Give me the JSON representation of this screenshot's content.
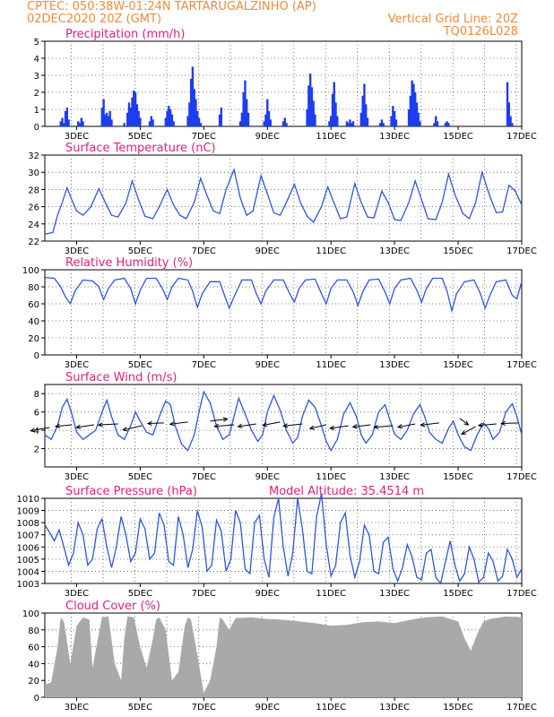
{
  "header": {
    "left_line1": "CPTEC:   050:38W-01:24N   TARTARUGALZINHO (AP)",
    "left_line2": "02DEC2020 20Z (GMT)",
    "right_line1": "Vertical Grid Line: 20Z",
    "right_line2": "TQ0126L028"
  },
  "colors": {
    "header": "#f08a3c",
    "title": "#e0217a",
    "line": "#2f55e0",
    "bar": "#1e3cf0",
    "cloud": "#a9a9a9",
    "grid": "#555555"
  },
  "x_axis": {
    "start_day": 2.0,
    "end_day": 17.0,
    "ticks": [
      3,
      5,
      7,
      9,
      11,
      13,
      15,
      17
    ],
    "tick_labels": [
      "3DEC",
      "5DEC",
      "7DEC",
      "9DEC",
      "11DEC",
      "13DEC",
      "15DEC",
      "17DEC"
    ],
    "vertical_grid_days": [
      2.833,
      3.833,
      4.833,
      5.833,
      6.833,
      7.833,
      8.833,
      9.833,
      10.833,
      11.833,
      12.833,
      13.833,
      14.833,
      15.833,
      16.833
    ]
  },
  "chart_data": [
    {
      "type": "bar",
      "title": "Precipitation (mm/h)",
      "ylim": [
        0,
        5
      ],
      "yticks": [
        0,
        1,
        2,
        3,
        4,
        5
      ],
      "x": [
        2.5,
        2.55,
        2.6,
        2.65,
        2.7,
        2.75,
        3.05,
        3.1,
        3.15,
        3.2,
        3.8,
        3.85,
        3.9,
        3.95,
        4.0,
        4.05,
        4.1,
        4.5,
        4.6,
        4.65,
        4.7,
        4.75,
        4.8,
        4.85,
        4.9,
        4.95,
        5.0,
        5.3,
        5.35,
        5.4,
        5.8,
        5.85,
        5.9,
        5.95,
        6.0,
        6.05,
        6.5,
        6.55,
        6.6,
        6.65,
        6.7,
        6.75,
        6.8,
        6.85,
        6.9,
        7.5,
        7.55,
        8.15,
        8.2,
        8.25,
        8.3,
        8.35,
        8.4,
        8.9,
        8.95,
        9.0,
        9.05,
        9.1,
        9.5,
        9.55,
        9.6,
        10.25,
        10.3,
        10.35,
        10.4,
        10.45,
        10.5,
        10.95,
        11.0,
        11.05,
        11.1,
        11.15,
        11.2,
        11.5,
        11.55,
        11.6,
        11.65,
        11.7,
        11.95,
        12.0,
        12.05,
        12.1,
        12.15,
        12.55,
        12.6,
        12.65,
        12.9,
        12.95,
        13.0,
        13.05,
        13.45,
        13.5,
        13.55,
        13.6,
        13.65,
        13.7,
        13.75,
        13.8,
        14.25,
        14.3,
        14.35,
        14.6,
        14.65,
        14.7,
        16.55,
        16.6,
        16.65,
        16.7
      ],
      "values": [
        0.3,
        0.5,
        0.2,
        0.9,
        1.1,
        0.4,
        0.3,
        0.2,
        0.5,
        0.3,
        1.1,
        1.6,
        0.7,
        0.8,
        0.6,
        0.9,
        0.4,
        0.2,
        0.8,
        1.4,
        1.1,
        1.7,
        2.1,
        2.0,
        1.3,
        0.9,
        0.5,
        0.3,
        0.6,
        0.4,
        0.5,
        0.9,
        1.2,
        1.0,
        0.7,
        0.3,
        0.6,
        1.4,
        2.8,
        3.5,
        2.2,
        1.6,
        0.9,
        0.5,
        0.2,
        0.7,
        1.1,
        0.3,
        0.8,
        2.0,
        2.7,
        1.6,
        0.8,
        0.3,
        0.7,
        1.6,
        0.9,
        0.4,
        0.3,
        0.5,
        0.2,
        1.0,
        2.4,
        3.1,
        2.3,
        1.5,
        0.7,
        0.3,
        0.6,
        1.9,
        2.6,
        1.4,
        0.6,
        0.3,
        0.2,
        0.4,
        0.2,
        0.3,
        0.8,
        1.8,
        2.5,
        1.3,
        0.5,
        0.2,
        0.4,
        0.2,
        0.6,
        1.2,
        0.9,
        0.4,
        1.0,
        1.8,
        2.7,
        2.5,
        2.0,
        1.4,
        0.8,
        0.3,
        0.2,
        0.6,
        0.3,
        0.2,
        0.3,
        0.2,
        2.6,
        1.4,
        0.6,
        0.2
      ]
    },
    {
      "type": "line",
      "title": "Surface Temperature (nC)",
      "ylim": [
        22,
        32
      ],
      "yticks": [
        22,
        24,
        26,
        28,
        30,
        32
      ],
      "x": [
        2.0,
        2.25,
        2.4,
        2.55,
        2.7,
        2.85,
        3.0,
        3.2,
        3.45,
        3.7,
        3.9,
        4.1,
        4.3,
        4.55,
        4.75,
        4.95,
        5.15,
        5.4,
        5.6,
        5.85,
        6.05,
        6.25,
        6.45,
        6.7,
        6.9,
        7.1,
        7.3,
        7.5,
        7.7,
        7.95,
        8.15,
        8.35,
        8.55,
        8.8,
        9.0,
        9.2,
        9.4,
        9.6,
        9.85,
        10.05,
        10.25,
        10.45,
        10.7,
        10.9,
        11.1,
        11.3,
        11.5,
        11.75,
        11.95,
        12.15,
        12.35,
        12.6,
        12.8,
        13.0,
        13.2,
        13.45,
        13.65,
        13.85,
        14.05,
        14.3,
        14.5,
        14.7,
        14.9,
        15.15,
        15.35,
        15.55,
        15.75,
        16.0,
        16.2,
        16.4,
        16.6,
        16.8,
        17.0
      ],
      "values": [
        22.8,
        23.0,
        25.0,
        26.5,
        28.2,
        26.8,
        25.5,
        25.0,
        26.0,
        28.1,
        26.5,
        25.0,
        24.8,
        26.4,
        29.0,
        26.8,
        24.9,
        24.6,
        26.0,
        28.0,
        26.2,
        25.0,
        24.6,
        26.5,
        29.3,
        27.3,
        25.5,
        25.2,
        28.0,
        30.3,
        27.0,
        25.0,
        25.5,
        29.6,
        27.5,
        25.3,
        25.0,
        26.5,
        28.6,
        26.4,
        24.9,
        24.2,
        26.0,
        28.3,
        26.4,
        24.6,
        24.8,
        28.7,
        26.5,
        24.8,
        24.7,
        27.8,
        26.5,
        24.5,
        24.4,
        26.5,
        29.0,
        26.8,
        24.6,
        24.5,
        26.5,
        29.8,
        27.4,
        25.2,
        24.6,
        26.5,
        30.0,
        27.2,
        25.3,
        25.4,
        28.5,
        27.8,
        26.2
      ]
    },
    {
      "type": "line",
      "title": "Relative Humidity (%)",
      "ylim": [
        0,
        100
      ],
      "yticks": [
        0,
        20,
        40,
        60,
        80,
        100
      ],
      "x": [
        2.0,
        2.3,
        2.5,
        2.65,
        2.8,
        2.95,
        3.2,
        3.5,
        3.7,
        3.85,
        4.0,
        4.2,
        4.5,
        4.7,
        4.85,
        5.0,
        5.2,
        5.5,
        5.7,
        5.85,
        6.0,
        6.2,
        6.5,
        6.65,
        6.8,
        6.95,
        7.2,
        7.5,
        7.65,
        7.8,
        7.95,
        8.2,
        8.5,
        8.65,
        8.8,
        8.95,
        9.2,
        9.5,
        9.7,
        9.85,
        10.0,
        10.2,
        10.5,
        10.7,
        10.85,
        11.0,
        11.2,
        11.5,
        11.7,
        11.85,
        12.0,
        12.2,
        12.5,
        12.7,
        12.85,
        13.0,
        13.2,
        13.5,
        13.7,
        13.85,
        14.0,
        14.2,
        14.5,
        14.65,
        14.8,
        14.95,
        15.2,
        15.5,
        15.7,
        15.85,
        16.0,
        16.2,
        16.5,
        16.7,
        16.85,
        17.0
      ],
      "values": [
        91,
        90,
        80,
        68,
        60,
        75,
        88,
        87,
        80,
        65,
        78,
        88,
        90,
        78,
        60,
        76,
        90,
        90,
        78,
        65,
        80,
        90,
        88,
        75,
        56,
        72,
        86,
        86,
        70,
        55,
        68,
        88,
        88,
        72,
        60,
        75,
        88,
        88,
        72,
        62,
        78,
        88,
        89,
        72,
        60,
        78,
        88,
        88,
        74,
        58,
        74,
        88,
        89,
        74,
        60,
        78,
        88,
        90,
        76,
        62,
        78,
        90,
        90,
        75,
        52,
        72,
        86,
        88,
        72,
        55,
        70,
        86,
        88,
        70,
        66,
        86
      ]
    },
    {
      "type": "line",
      "title": "Surface Wind (m/s)",
      "ylim": [
        0,
        9
      ],
      "yticks": [
        2,
        4,
        6,
        8
      ],
      "x": [
        2.0,
        2.2,
        2.4,
        2.55,
        2.7,
        2.85,
        3.0,
        3.2,
        3.4,
        3.6,
        3.8,
        3.95,
        4.1,
        4.3,
        4.5,
        4.7,
        4.85,
        5.0,
        5.2,
        5.4,
        5.6,
        5.8,
        5.95,
        6.1,
        6.3,
        6.5,
        6.7,
        6.85,
        7.0,
        7.2,
        7.4,
        7.6,
        7.8,
        7.95,
        8.1,
        8.3,
        8.5,
        8.7,
        8.85,
        9.0,
        9.2,
        9.4,
        9.6,
        9.8,
        9.95,
        10.1,
        10.3,
        10.5,
        10.7,
        10.85,
        11.0,
        11.2,
        11.4,
        11.6,
        11.8,
        11.95,
        12.1,
        12.3,
        12.5,
        12.7,
        12.85,
        13.0,
        13.2,
        13.4,
        13.6,
        13.8,
        13.95,
        14.1,
        14.3,
        14.5,
        14.7,
        14.85,
        15.0,
        15.2,
        15.4,
        15.6,
        15.8,
        15.95,
        16.1,
        16.3,
        16.5,
        16.7,
        16.85,
        17.0
      ],
      "values": [
        3.5,
        3.0,
        4.5,
        6.5,
        7.4,
        5.8,
        3.8,
        3.0,
        3.5,
        4.0,
        6.0,
        7.3,
        5.5,
        3.5,
        3.0,
        4.5,
        6.0,
        5.0,
        3.8,
        3.5,
        5.5,
        7.2,
        6.8,
        4.5,
        2.5,
        1.8,
        3.5,
        6.0,
        8.2,
        7.0,
        4.5,
        3.0,
        3.5,
        5.5,
        7.5,
        5.8,
        4.0,
        2.8,
        3.5,
        6.0,
        7.8,
        6.2,
        4.0,
        2.6,
        3.2,
        5.5,
        7.3,
        6.5,
        4.5,
        2.8,
        1.8,
        3.0,
        5.8,
        7.0,
        5.5,
        3.5,
        2.6,
        3.5,
        6.0,
        6.8,
        5.2,
        3.6,
        3.0,
        4.0,
        5.8,
        6.8,
        5.5,
        3.8,
        3.0,
        2.6,
        4.2,
        5.0,
        3.5,
        2.2,
        1.8,
        3.5,
        4.8,
        4.2,
        3.0,
        3.8,
        6.0,
        6.9,
        5.5,
        3.5
      ],
      "vectors": [
        {
          "x": 2.15,
          "y": 4.3,
          "u": -3.5,
          "v": -0.6
        },
        {
          "x": 2.85,
          "y": 4.6,
          "u": -3.0,
          "v": -0.3
        },
        {
          "x": 3.55,
          "y": 4.6,
          "u": -3.3,
          "v": -0.5
        },
        {
          "x": 4.3,
          "y": 4.7,
          "u": -3.6,
          "v": -0.2
        },
        {
          "x": 5.05,
          "y": 4.5,
          "u": -3.5,
          "v": -0.8
        },
        {
          "x": 5.75,
          "y": 4.8,
          "u": -3.0,
          "v": -0.1
        },
        {
          "x": 6.5,
          "y": 4.9,
          "u": -3.3,
          "v": -0.4
        },
        {
          "x": 7.2,
          "y": 5.0,
          "u": 3.2,
          "v": 0.4
        },
        {
          "x": 7.95,
          "y": 4.6,
          "u": -3.6,
          "v": -0.3
        },
        {
          "x": 8.65,
          "y": 4.7,
          "u": -3.4,
          "v": -0.5
        },
        {
          "x": 9.4,
          "y": 4.9,
          "u": -3.2,
          "v": -0.6
        },
        {
          "x": 10.1,
          "y": 4.7,
          "u": -3.5,
          "v": -0.4
        },
        {
          "x": 10.85,
          "y": 4.6,
          "u": -3.0,
          "v": -0.7
        },
        {
          "x": 11.55,
          "y": 4.5,
          "u": -3.4,
          "v": -0.5
        },
        {
          "x": 12.25,
          "y": 4.6,
          "u": -3.3,
          "v": -0.4
        },
        {
          "x": 12.95,
          "y": 4.5,
          "u": -3.5,
          "v": -0.3
        },
        {
          "x": 13.65,
          "y": 4.7,
          "u": -3.2,
          "v": -0.6
        },
        {
          "x": 14.4,
          "y": 4.8,
          "u": -3.4,
          "v": -0.4
        },
        {
          "x": 15.05,
          "y": 5.3,
          "u": 1.6,
          "v": -1.2
        },
        {
          "x": 15.55,
          "y": 4.4,
          "u": -2.6,
          "v": -1.4
        },
        {
          "x": 16.2,
          "y": 4.7,
          "u": -3.3,
          "v": -0.3
        },
        {
          "x": 16.9,
          "y": 4.8,
          "u": -3.2,
          "v": -0.1
        }
      ]
    },
    {
      "type": "line",
      "title": "Surface Pressure (hPa)",
      "annotation": "Model Altitude: 35.4514 m",
      "ylim": [
        1003,
        1010
      ],
      "yticks": [
        1003,
        1004,
        1005,
        1006,
        1007,
        1008,
        1009,
        1010
      ],
      "x": [
        2.0,
        2.15,
        2.3,
        2.45,
        2.6,
        2.75,
        2.9,
        3.05,
        3.2,
        3.35,
        3.5,
        3.65,
        3.8,
        3.95,
        4.1,
        4.25,
        4.4,
        4.55,
        4.7,
        4.85,
        5.0,
        5.15,
        5.3,
        5.45,
        5.6,
        5.75,
        5.9,
        6.05,
        6.2,
        6.35,
        6.5,
        6.65,
        6.8,
        6.95,
        7.1,
        7.25,
        7.4,
        7.55,
        7.7,
        7.85,
        8.0,
        8.15,
        8.3,
        8.45,
        8.6,
        8.75,
        8.9,
        9.05,
        9.2,
        9.35,
        9.5,
        9.65,
        9.8,
        9.95,
        10.1,
        10.25,
        10.4,
        10.55,
        10.7,
        10.85,
        11.0,
        11.15,
        11.3,
        11.45,
        11.6,
        11.75,
        11.9,
        12.05,
        12.2,
        12.35,
        12.5,
        12.65,
        12.8,
        12.95,
        13.1,
        13.25,
        13.4,
        13.55,
        13.7,
        13.85,
        14.0,
        14.15,
        14.3,
        14.45,
        14.6,
        14.75,
        14.9,
        15.05,
        15.2,
        15.35,
        15.5,
        15.65,
        15.8,
        15.95,
        16.1,
        16.25,
        16.4,
        16.55,
        16.7,
        16.85,
        17.0
      ],
      "values": [
        1007.8,
        1007.2,
        1006.5,
        1007.4,
        1006.0,
        1004.5,
        1005.5,
        1008.0,
        1007.0,
        1004.5,
        1005.0,
        1007.5,
        1008.3,
        1006.0,
        1004.3,
        1006.0,
        1008.5,
        1007.0,
        1004.8,
        1005.5,
        1008.3,
        1007.5,
        1005.0,
        1005.5,
        1008.8,
        1007.8,
        1004.8,
        1004.5,
        1008.5,
        1007.0,
        1004.3,
        1005.8,
        1009.0,
        1007.6,
        1004.0,
        1004.5,
        1008.2,
        1007.3,
        1004.0,
        1005.0,
        1009.0,
        1008.0,
        1004.2,
        1003.8,
        1008.0,
        1008.6,
        1005.0,
        1003.5,
        1008.4,
        1010.0,
        1006.0,
        1003.6,
        1005.5,
        1010.0,
        1007.5,
        1004.0,
        1003.8,
        1008.5,
        1010.4,
        1006.2,
        1003.6,
        1004.5,
        1008.0,
        1008.8,
        1005.3,
        1003.5,
        1004.8,
        1007.8,
        1007.0,
        1004.0,
        1003.8,
        1006.4,
        1006.8,
        1004.2,
        1003.2,
        1004.3,
        1006.2,
        1005.2,
        1003.5,
        1003.3,
        1005.5,
        1005.8,
        1003.5,
        1003.0,
        1004.8,
        1006.5,
        1004.5,
        1003.2,
        1003.8,
        1006.0,
        1005.0,
        1003.1,
        1003.5,
        1005.5,
        1004.8,
        1003.2,
        1003.6,
        1005.8,
        1005.0,
        1003.5,
        1004.2
      ]
    },
    {
      "type": "area",
      "title": "Cloud Cover (%)",
      "ylim": [
        0,
        100
      ],
      "yticks": [
        0,
        20,
        40,
        60,
        80,
        100
      ],
      "x": [
        2.0,
        2.2,
        2.4,
        2.5,
        2.6,
        2.8,
        3.0,
        3.2,
        3.4,
        3.5,
        3.6,
        3.8,
        4.0,
        4.2,
        4.4,
        4.5,
        4.6,
        4.8,
        5.0,
        5.2,
        5.4,
        5.5,
        5.6,
        5.8,
        6.0,
        6.2,
        6.4,
        6.5,
        6.6,
        6.8,
        7.0,
        7.2,
        7.4,
        7.5,
        7.6,
        7.8,
        8.0,
        8.5,
        9.0,
        9.5,
        10.0,
        10.5,
        11.0,
        11.5,
        12.0,
        12.5,
        13.0,
        13.5,
        14.0,
        14.5,
        15.0,
        15.2,
        15.4,
        15.6,
        15.8,
        16.0,
        16.5,
        17.0
      ],
      "values": [
        15,
        18,
        60,
        95,
        90,
        40,
        85,
        95,
        92,
        35,
        55,
        95,
        96,
        40,
        20,
        70,
        96,
        95,
        60,
        35,
        70,
        92,
        95,
        80,
        20,
        30,
        85,
        95,
        92,
        50,
        5,
        20,
        60,
        95,
        92,
        80,
        94,
        95,
        93,
        92,
        90,
        88,
        85,
        86,
        89,
        90,
        88,
        92,
        95,
        96,
        90,
        70,
        55,
        75,
        90,
        93,
        96,
        95
      ]
    }
  ]
}
